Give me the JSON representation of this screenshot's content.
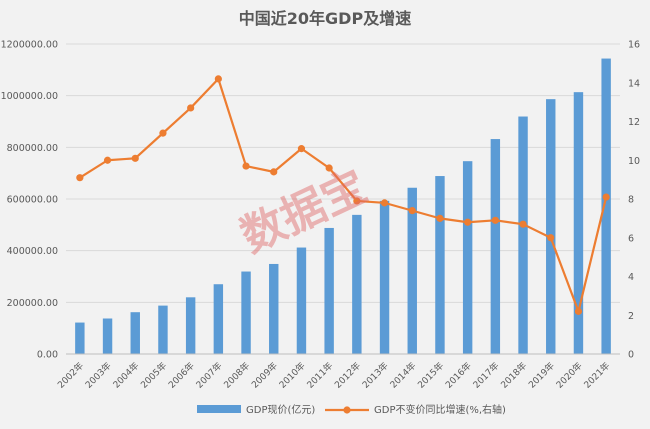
{
  "chart_data": {
    "type": "bar",
    "title": "中国近20年GDP及增速",
    "categories": [
      "2002年",
      "2003年",
      "2004年",
      "2005年",
      "2006年",
      "2007年",
      "2008年",
      "2009年",
      "2010年",
      "2011年",
      "2012年",
      "2013年",
      "2014年",
      "2015年",
      "2016年",
      "2017年",
      "2018年",
      "2019年",
      "2020年",
      "2021年"
    ],
    "series": [
      {
        "name": "GDP现价(亿元)",
        "type": "bar",
        "axis": "left",
        "color": "#5b9bd5",
        "values": [
          121717,
          137422,
          161840,
          187319,
          219439,
          270092,
          319245,
          348518,
          412119,
          487940,
          538580,
          592963,
          643563,
          688858,
          746395,
          832036,
          919281,
          986515,
          1013567,
          1143670
        ]
      },
      {
        "name": "GDP不变价同比增速(%,右轴)",
        "type": "line",
        "axis": "right",
        "color": "#ed7d31",
        "values": [
          9.1,
          10.0,
          10.1,
          11.4,
          12.7,
          14.2,
          9.7,
          9.4,
          10.6,
          9.6,
          7.9,
          7.8,
          7.4,
          7.0,
          6.8,
          6.9,
          6.7,
          6.0,
          2.2,
          8.1
        ]
      }
    ],
    "y_left": {
      "min": 0,
      "max": 1200000,
      "step": 200000,
      "ticks": [
        "0.00",
        "200000.00",
        "400000.00",
        "600000.00",
        "800000.00",
        "1000000.00",
        "1200000.00"
      ]
    },
    "y_right": {
      "min": 0,
      "max": 16,
      "step": 2,
      "ticks": [
        "0",
        "2",
        "4",
        "6",
        "8",
        "10",
        "12",
        "14",
        "16"
      ]
    },
    "grid": true,
    "legend_position": "bottom",
    "watermark": "数据宝"
  }
}
